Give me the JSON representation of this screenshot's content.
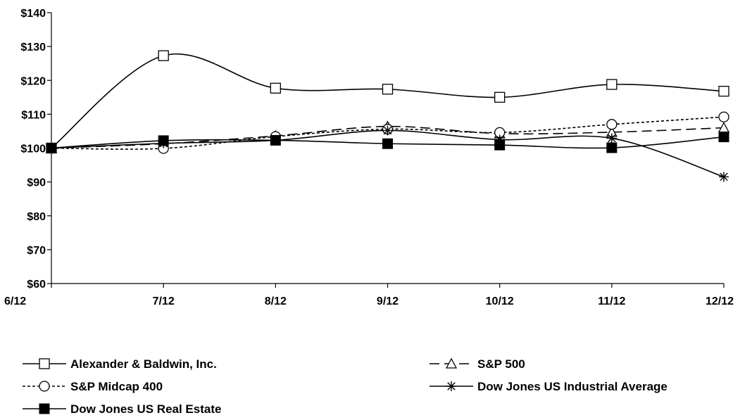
{
  "chart_data": {
    "type": "line",
    "title": "",
    "xlabel": "",
    "ylabel": "",
    "categories": [
      "6/12",
      "7/12",
      "8/12",
      "9/12",
      "10/12",
      "11/12",
      "12/12"
    ],
    "ylim": [
      60,
      140
    ],
    "yticks": [
      60,
      70,
      80,
      90,
      100,
      110,
      120,
      130,
      140
    ],
    "ytick_labels": [
      "$60",
      "$70",
      "$80",
      "$90",
      "$100",
      "$110",
      "$120",
      "$130",
      "$140"
    ],
    "grid": false,
    "legend_position": "bottom",
    "series": [
      {
        "name": "Alexander & Baldwin, Inc.",
        "values": [
          100,
          127.3,
          117.7,
          117.4,
          115.0,
          118.8,
          116.8
        ],
        "marker": "square-open",
        "dash": "solid",
        "color": "#000000"
      },
      {
        "name": "S&P 500",
        "values": [
          100,
          101.3,
          103.6,
          106.4,
          104.3,
          104.7,
          106.0
        ],
        "marker": "triangle-open",
        "dash": "long-dash",
        "color": "#000000"
      },
      {
        "name": "S&P Midcap 400",
        "values": [
          100,
          99.9,
          103.4,
          105.6,
          104.6,
          107.0,
          109.2
        ],
        "marker": "circle-open",
        "dash": "short-dash",
        "color": "#000000"
      },
      {
        "name": "Dow Jones US Industrial Average",
        "values": [
          100,
          101.4,
          102.3,
          105.2,
          102.5,
          102.9,
          91.5
        ],
        "marker": "asterisk",
        "dash": "solid",
        "color": "#000000"
      },
      {
        "name": "Dow Jones US Real Estate",
        "values": [
          100,
          102.2,
          102.3,
          101.3,
          100.9,
          100.1,
          103.3
        ],
        "marker": "square-filled",
        "dash": "solid",
        "color": "#000000"
      }
    ]
  }
}
